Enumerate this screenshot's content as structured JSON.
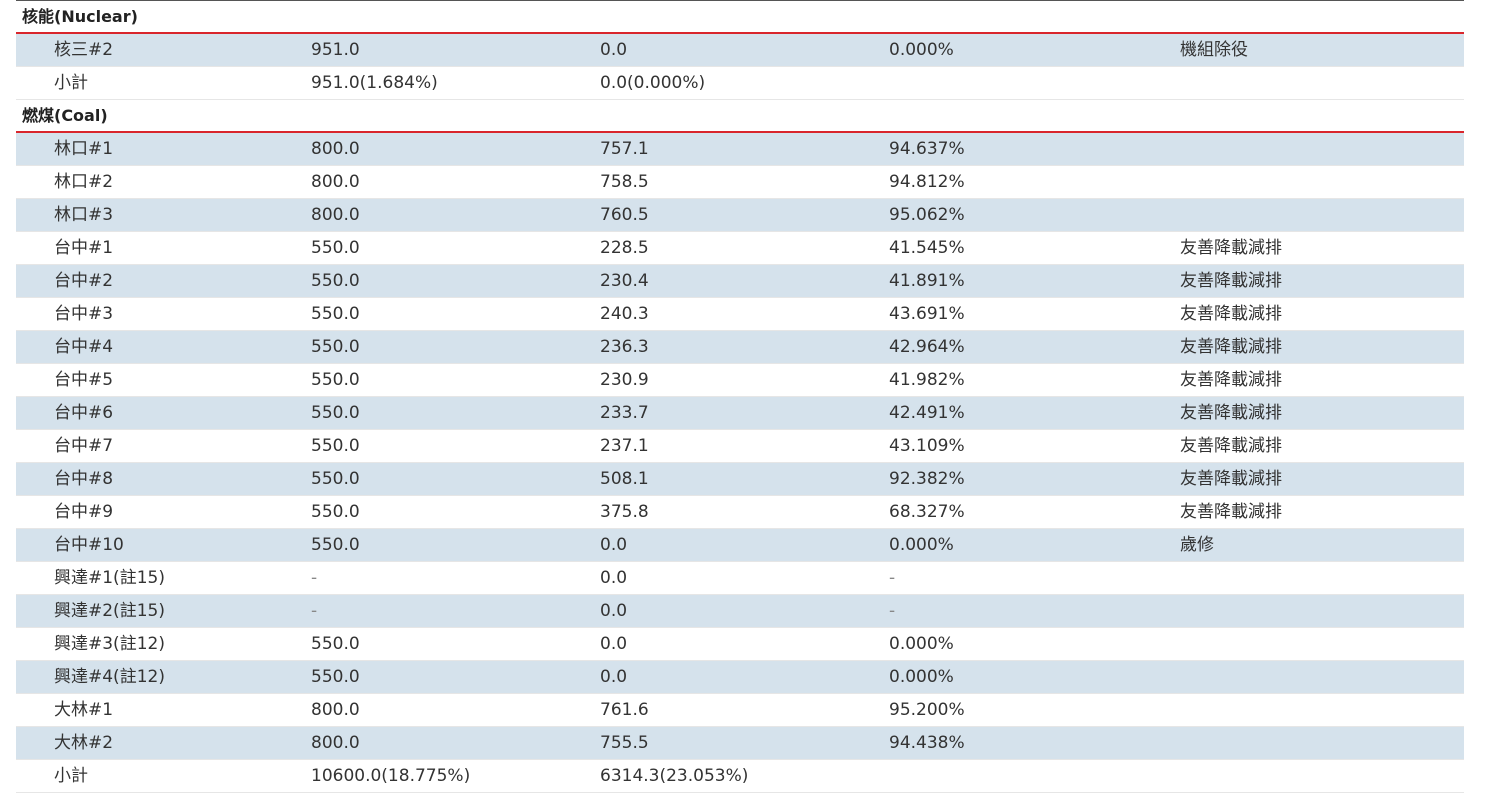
{
  "sections": [
    {
      "title": "核能(Nuclear)",
      "rows": [
        {
          "unit": "核三#2",
          "capacity": "951.0",
          "net": "0.0",
          "ratio": "0.000%",
          "note": "機組除役"
        },
        {
          "unit": "小計",
          "capacity": "951.0(1.684%)",
          "net": "0.0(0.000%)",
          "ratio": "",
          "note": ""
        }
      ]
    },
    {
      "title": "燃煤(Coal)",
      "rows": [
        {
          "unit": "林口#1",
          "capacity": "800.0",
          "net": "757.1",
          "ratio": "94.637%",
          "note": ""
        },
        {
          "unit": "林口#2",
          "capacity": "800.0",
          "net": "758.5",
          "ratio": "94.812%",
          "note": ""
        },
        {
          "unit": "林口#3",
          "capacity": "800.0",
          "net": "760.5",
          "ratio": "95.062%",
          "note": ""
        },
        {
          "unit": "台中#1",
          "capacity": "550.0",
          "net": "228.5",
          "ratio": "41.545%",
          "note": "友善降載減排"
        },
        {
          "unit": "台中#2",
          "capacity": "550.0",
          "net": "230.4",
          "ratio": "41.891%",
          "note": "友善降載減排"
        },
        {
          "unit": "台中#3",
          "capacity": "550.0",
          "net": "240.3",
          "ratio": "43.691%",
          "note": "友善降載減排"
        },
        {
          "unit": "台中#4",
          "capacity": "550.0",
          "net": "236.3",
          "ratio": "42.964%",
          "note": "友善降載減排"
        },
        {
          "unit": "台中#5",
          "capacity": "550.0",
          "net": "230.9",
          "ratio": "41.982%",
          "note": "友善降載減排"
        },
        {
          "unit": "台中#6",
          "capacity": "550.0",
          "net": "233.7",
          "ratio": "42.491%",
          "note": "友善降載減排"
        },
        {
          "unit": "台中#7",
          "capacity": "550.0",
          "net": "237.1",
          "ratio": "43.109%",
          "note": "友善降載減排"
        },
        {
          "unit": "台中#8",
          "capacity": "550.0",
          "net": "508.1",
          "ratio": "92.382%",
          "note": "友善降載減排"
        },
        {
          "unit": "台中#9",
          "capacity": "550.0",
          "net": "375.8",
          "ratio": "68.327%",
          "note": "友善降載減排"
        },
        {
          "unit": "台中#10",
          "capacity": "550.0",
          "net": "0.0",
          "ratio": "0.000%",
          "note": "歲修"
        },
        {
          "unit": "興達#1(註15)",
          "capacity": "-",
          "net": "0.0",
          "ratio": "-",
          "note": ""
        },
        {
          "unit": "興達#2(註15)",
          "capacity": "-",
          "net": "0.0",
          "ratio": "-",
          "note": ""
        },
        {
          "unit": "興達#3(註12)",
          "capacity": "550.0",
          "net": "0.0",
          "ratio": "0.000%",
          "note": ""
        },
        {
          "unit": "興達#4(註12)",
          "capacity": "550.0",
          "net": "0.0",
          "ratio": "0.000%",
          "note": ""
        },
        {
          "unit": "大林#1",
          "capacity": "800.0",
          "net": "761.6",
          "ratio": "95.200%",
          "note": ""
        },
        {
          "unit": "大林#2",
          "capacity": "800.0",
          "net": "755.5",
          "ratio": "94.438%",
          "note": ""
        },
        {
          "unit": "小計",
          "capacity": "10600.0(18.775%)",
          "net": "6314.3(23.053%)",
          "ratio": "",
          "note": ""
        }
      ]
    }
  ],
  "colors": {
    "row_alt_bg": "#d5e2ec",
    "section_rule": "#d9262c"
  }
}
